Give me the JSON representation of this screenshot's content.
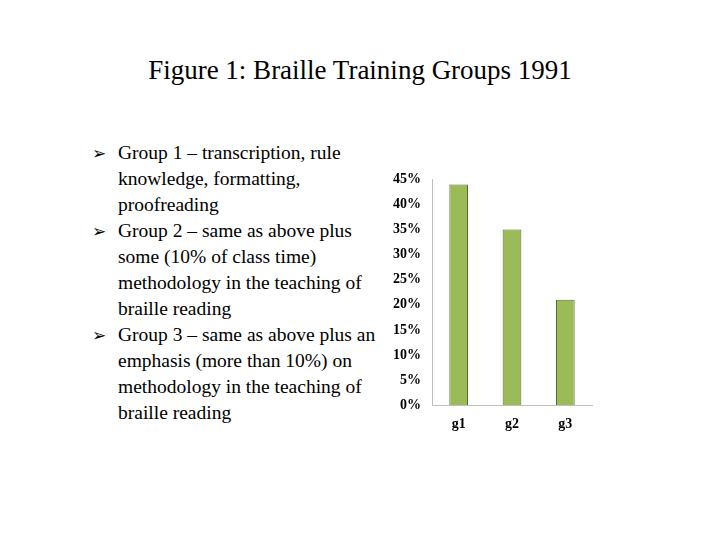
{
  "chart_data": {
    "type": "bar",
    "title": "Figure 1: Braille Training Groups 1991",
    "annotations": [
      "Group 1 – transcription, rule knowledge, formatting, proofreading",
      "Group 2 – same as above plus some (10% of class time) methodology in the teaching of braille reading",
      "Group 3 – same as above plus an emphasis (more than 10%) on methodology in the teaching of braille reading"
    ],
    "categories": [
      "g1",
      "g2",
      "g3"
    ],
    "values": [
      44,
      35,
      21
    ],
    "color": "#9bbb59",
    "ylim": [
      0,
      45
    ],
    "yticks": [
      {
        "value": 0,
        "label": "0%"
      },
      {
        "value": 5,
        "label": "5%"
      },
      {
        "value": 10,
        "label": "10%"
      },
      {
        "value": 15,
        "label": "15%"
      },
      {
        "value": 20,
        "label": "20%"
      },
      {
        "value": 25,
        "label": "25%"
      },
      {
        "value": 30,
        "label": "30%"
      },
      {
        "value": 35,
        "label": "35%"
      },
      {
        "value": 40,
        "label": "40%"
      },
      {
        "value": 45,
        "label": "45%"
      }
    ],
    "grid": false
  }
}
